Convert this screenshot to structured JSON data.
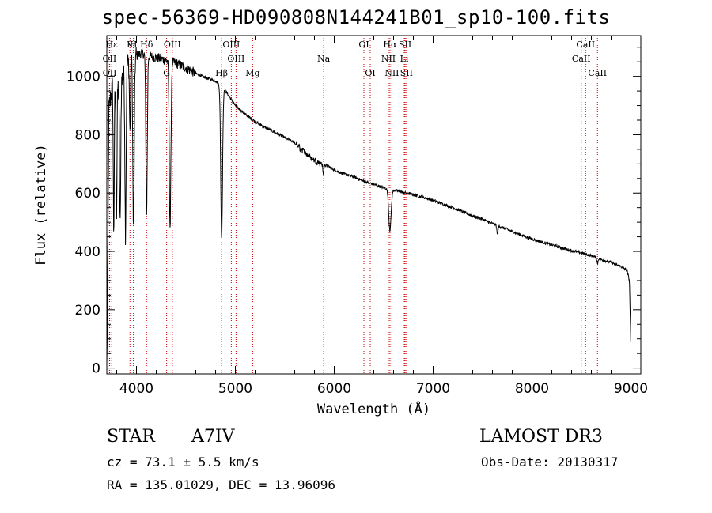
{
  "chart_data": {
    "type": "line",
    "title": "spec-56369-HD090808N144241B01_sp10-100.fits",
    "xlabel": "Wavelength (Å)",
    "ylabel": "Flux (relative)",
    "xlim": [
      3700,
      9100
    ],
    "ylim": [
      -20,
      1140
    ],
    "xticks": [
      4000,
      5000,
      6000,
      7000,
      8000,
      9000
    ],
    "yticks": [
      0,
      200,
      400,
      600,
      800,
      1000
    ],
    "series": [
      {
        "name": "flux",
        "continuum": [
          [
            3700,
            0
          ],
          [
            3708,
            250
          ],
          [
            3720,
            880
          ],
          [
            3740,
            930
          ],
          [
            3760,
            980
          ],
          [
            3780,
            960
          ],
          [
            3800,
            1000
          ],
          [
            3820,
            950
          ],
          [
            3840,
            1020
          ],
          [
            3860,
            990
          ],
          [
            3900,
            1040
          ],
          [
            3950,
            1060
          ],
          [
            4000,
            1070
          ],
          [
            4050,
            1080
          ],
          [
            4120,
            1070
          ],
          [
            4200,
            1065
          ],
          [
            4300,
            1055
          ],
          [
            4400,
            1045
          ],
          [
            4500,
            1030
          ],
          [
            4600,
            1010
          ],
          [
            4700,
            995
          ],
          [
            4800,
            985
          ],
          [
            4900,
            950
          ],
          [
            5000,
            900
          ],
          [
            5100,
            870
          ],
          [
            5200,
            845
          ],
          [
            5300,
            825
          ],
          [
            5400,
            808
          ],
          [
            5500,
            790
          ],
          [
            5600,
            772
          ],
          [
            5700,
            740
          ],
          [
            5800,
            712
          ],
          [
            5900,
            698
          ],
          [
            6000,
            680
          ],
          [
            6100,
            665
          ],
          [
            6200,
            655
          ],
          [
            6300,
            640
          ],
          [
            6400,
            630
          ],
          [
            6500,
            618
          ],
          [
            6600,
            610
          ],
          [
            6700,
            602
          ],
          [
            6800,
            595
          ],
          [
            6900,
            585
          ],
          [
            7000,
            575
          ],
          [
            7100,
            562
          ],
          [
            7200,
            550
          ],
          [
            7300,
            535
          ],
          [
            7400,
            522
          ],
          [
            7500,
            510
          ],
          [
            7600,
            495
          ],
          [
            7700,
            482
          ],
          [
            7800,
            468
          ],
          [
            7900,
            455
          ],
          [
            8000,
            443
          ],
          [
            8100,
            432
          ],
          [
            8200,
            422
          ],
          [
            8300,
            412
          ],
          [
            8400,
            402
          ],
          [
            8500,
            395
          ],
          [
            8600,
            385
          ],
          [
            8700,
            372
          ],
          [
            8800,
            362
          ],
          [
            8900,
            348
          ],
          [
            8960,
            335
          ],
          [
            8985,
            300
          ],
          [
            8995,
            150
          ],
          [
            9000,
            50
          ]
        ],
        "absorption_lines": [
          {
            "center": 3770,
            "depth": 500,
            "width": 5
          },
          {
            "center": 3798,
            "depth": 480,
            "width": 5
          },
          {
            "center": 3835,
            "depth": 520,
            "width": 6
          },
          {
            "center": 3889,
            "depth": 560,
            "width": 6
          },
          {
            "center": 3934,
            "depth": 250,
            "width": 5
          },
          {
            "center": 3970,
            "depth": 600,
            "width": 7
          },
          {
            "center": 4102,
            "depth": 550,
            "width": 7
          },
          {
            "center": 4340,
            "depth": 570,
            "width": 8
          },
          {
            "center": 4861,
            "depth": 520,
            "width": 9
          },
          {
            "center": 5890,
            "depth": 40,
            "width": 5
          },
          {
            "center": 6563,
            "depth": 140,
            "width": 12
          },
          {
            "center": 7650,
            "depth": 30,
            "width": 6
          },
          {
            "center": 8662,
            "depth": 20,
            "width": 5
          }
        ]
      }
    ],
    "line_markers": [
      {
        "label": "Hε",
        "wavelength": 3750,
        "row": 1
      },
      {
        "label": "OII",
        "wavelength": 3727,
        "row": 2
      },
      {
        "label": "OII",
        "wavelength": 3729,
        "row": 3
      },
      {
        "label": "K",
        "wavelength": 3934,
        "row": 1
      },
      {
        "label": "H",
        "wavelength": 3969,
        "row": 1
      },
      {
        "label": "Hδ",
        "wavelength": 4102,
        "row": 1
      },
      {
        "label": "G",
        "wavelength": 4305,
        "row": 3
      },
      {
        "label": "OIII",
        "wavelength": 4363,
        "row": 1
      },
      {
        "label": "Hβ",
        "wavelength": 4861,
        "row": 3
      },
      {
        "label": "OIII",
        "wavelength": 4959,
        "row": 1
      },
      {
        "label": "OIII",
        "wavelength": 5007,
        "row": 2
      },
      {
        "label": "Mg",
        "wavelength": 5175,
        "row": 3
      },
      {
        "label": "Na",
        "wavelength": 5893,
        "row": 2
      },
      {
        "label": "OI",
        "wavelength": 6300,
        "row": 1
      },
      {
        "label": "OI",
        "wavelength": 6364,
        "row": 3
      },
      {
        "label": "Hα",
        "wavelength": 6563,
        "row": 1
      },
      {
        "label": "NII",
        "wavelength": 6548,
        "row": 2
      },
      {
        "label": "NII",
        "wavelength": 6583,
        "row": 3
      },
      {
        "label": "SII",
        "wavelength": 6717,
        "row": 1
      },
      {
        "label": "Li",
        "wavelength": 6708,
        "row": 2
      },
      {
        "label": "SII",
        "wavelength": 6731,
        "row": 3
      },
      {
        "label": "CaII",
        "wavelength": 8542,
        "row": 1
      },
      {
        "label": "CaII",
        "wavelength": 8498,
        "row": 2
      },
      {
        "label": "CaII",
        "wavelength": 8662,
        "row": 3
      }
    ],
    "marker_color": "#cc0000",
    "line_color": "#000000"
  },
  "info": {
    "object_class": "STAR",
    "subclass": "A7IV",
    "survey": "LAMOST DR3",
    "redshift": "cz = 73.1 ± 5.5 km/s",
    "obs_date": "Obs-Date: 20130317",
    "coords": "RA = 135.01029, DEC =  13.96096"
  }
}
